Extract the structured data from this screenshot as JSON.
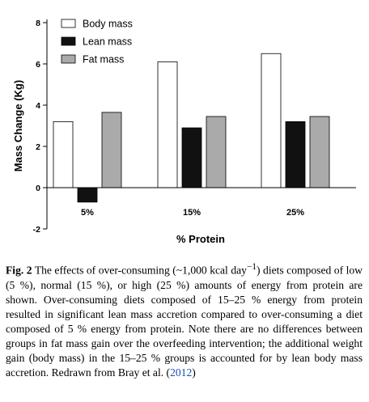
{
  "chart_data": {
    "type": "bar",
    "categories": [
      "5%",
      "15%",
      "25%"
    ],
    "series": [
      {
        "name": "Body mass",
        "values": [
          3.2,
          6.1,
          6.5
        ],
        "color": "#ffffff"
      },
      {
        "name": "Lean mass",
        "values": [
          -0.7,
          2.9,
          3.2
        ],
        "color": "#111111"
      },
      {
        "name": "Fat mass",
        "values": [
          3.65,
          3.45,
          3.45
        ],
        "color": "#aaaaaa"
      }
    ],
    "ylim": [
      -2,
      8
    ],
    "yticks": [
      -2,
      0,
      2,
      4,
      6,
      8
    ],
    "ytick_labels": [
      "-2",
      "0",
      "2",
      "4",
      "6",
      "8"
    ],
    "xlabel": "% Protein",
    "ylabel": "Mass Change (Kg)",
    "legend_position": "top-left",
    "grid": false
  },
  "caption": {
    "label": "Fig. 2",
    "text_part1": "The effects of over-consuming (~1,000 kcal day",
    "superscript": "−1",
    "text_part2": ") diets composed of low (5 %), normal (15 %), or high (25 %) amounts of energy from protein are shown. Over-consuming diets composed of 15–25 % energy from protein resulted in significant lean mass accretion compared to over-consuming a diet composed of 5 % energy from protein. Note there are no differences between groups in fat mass gain over the overfeeding intervention; the additional weight gain (body mass) in the 15–25 % groups is accounted for by lean body mass accretion. Redrawn from Bray et al. (",
    "reference": "2012",
    "text_end": ")"
  }
}
